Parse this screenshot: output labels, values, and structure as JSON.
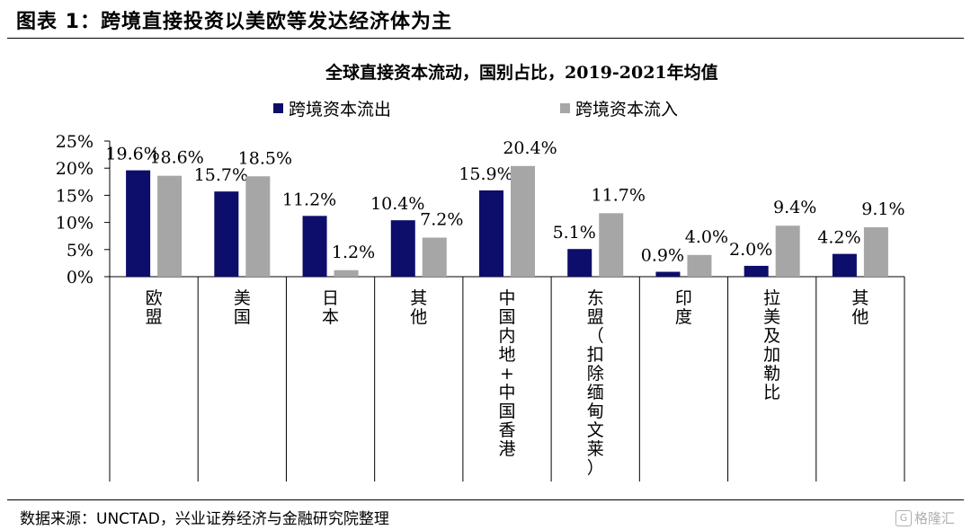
{
  "figure": {
    "title": "图表 1：跨境直接投资以美欧等发达经济体为主"
  },
  "colors": {
    "outflow": "#0d0d6b",
    "inflow": "#a6a6a6"
  },
  "chart_data": {
    "type": "bar",
    "title": "全球直接资本流动，国别占比，2019-2021年均值",
    "categories": [
      "欧盟",
      "美国",
      "日本",
      "其他",
      "中国内地+中国香港",
      "东盟（扣除缅甸文莱）",
      "印度",
      "拉美及加勒比",
      "其他"
    ],
    "series": [
      {
        "name": "跨境资本流出",
        "values": [
          19.6,
          15.7,
          11.2,
          10.4,
          15.9,
          5.1,
          0.9,
          2.0,
          4.2
        ],
        "labels": [
          "19.6%",
          "15.7%",
          "11.2%",
          "10.4%",
          "15.9%",
          "5.1%",
          "0.9%",
          "2.0%",
          "4.2%"
        ]
      },
      {
        "name": "跨境资本流入",
        "values": [
          18.6,
          18.5,
          1.2,
          7.2,
          20.4,
          11.7,
          4.0,
          9.4,
          9.1
        ],
        "labels": [
          "18.6%",
          "18.5%",
          "1.2%",
          "7.2%",
          "20.4%",
          "11.7%",
          "4.0%",
          "9.4%",
          "9.1%"
        ]
      }
    ],
    "yticks": [
      "0%",
      "5%",
      "10%",
      "15%",
      "20%",
      "25%"
    ],
    "ylim": [
      0,
      25
    ],
    "grid": false,
    "legend": "top"
  },
  "source": "数据来源：UNCTAD，兴业证券经济与金融研究院整理",
  "watermark": "格隆汇"
}
